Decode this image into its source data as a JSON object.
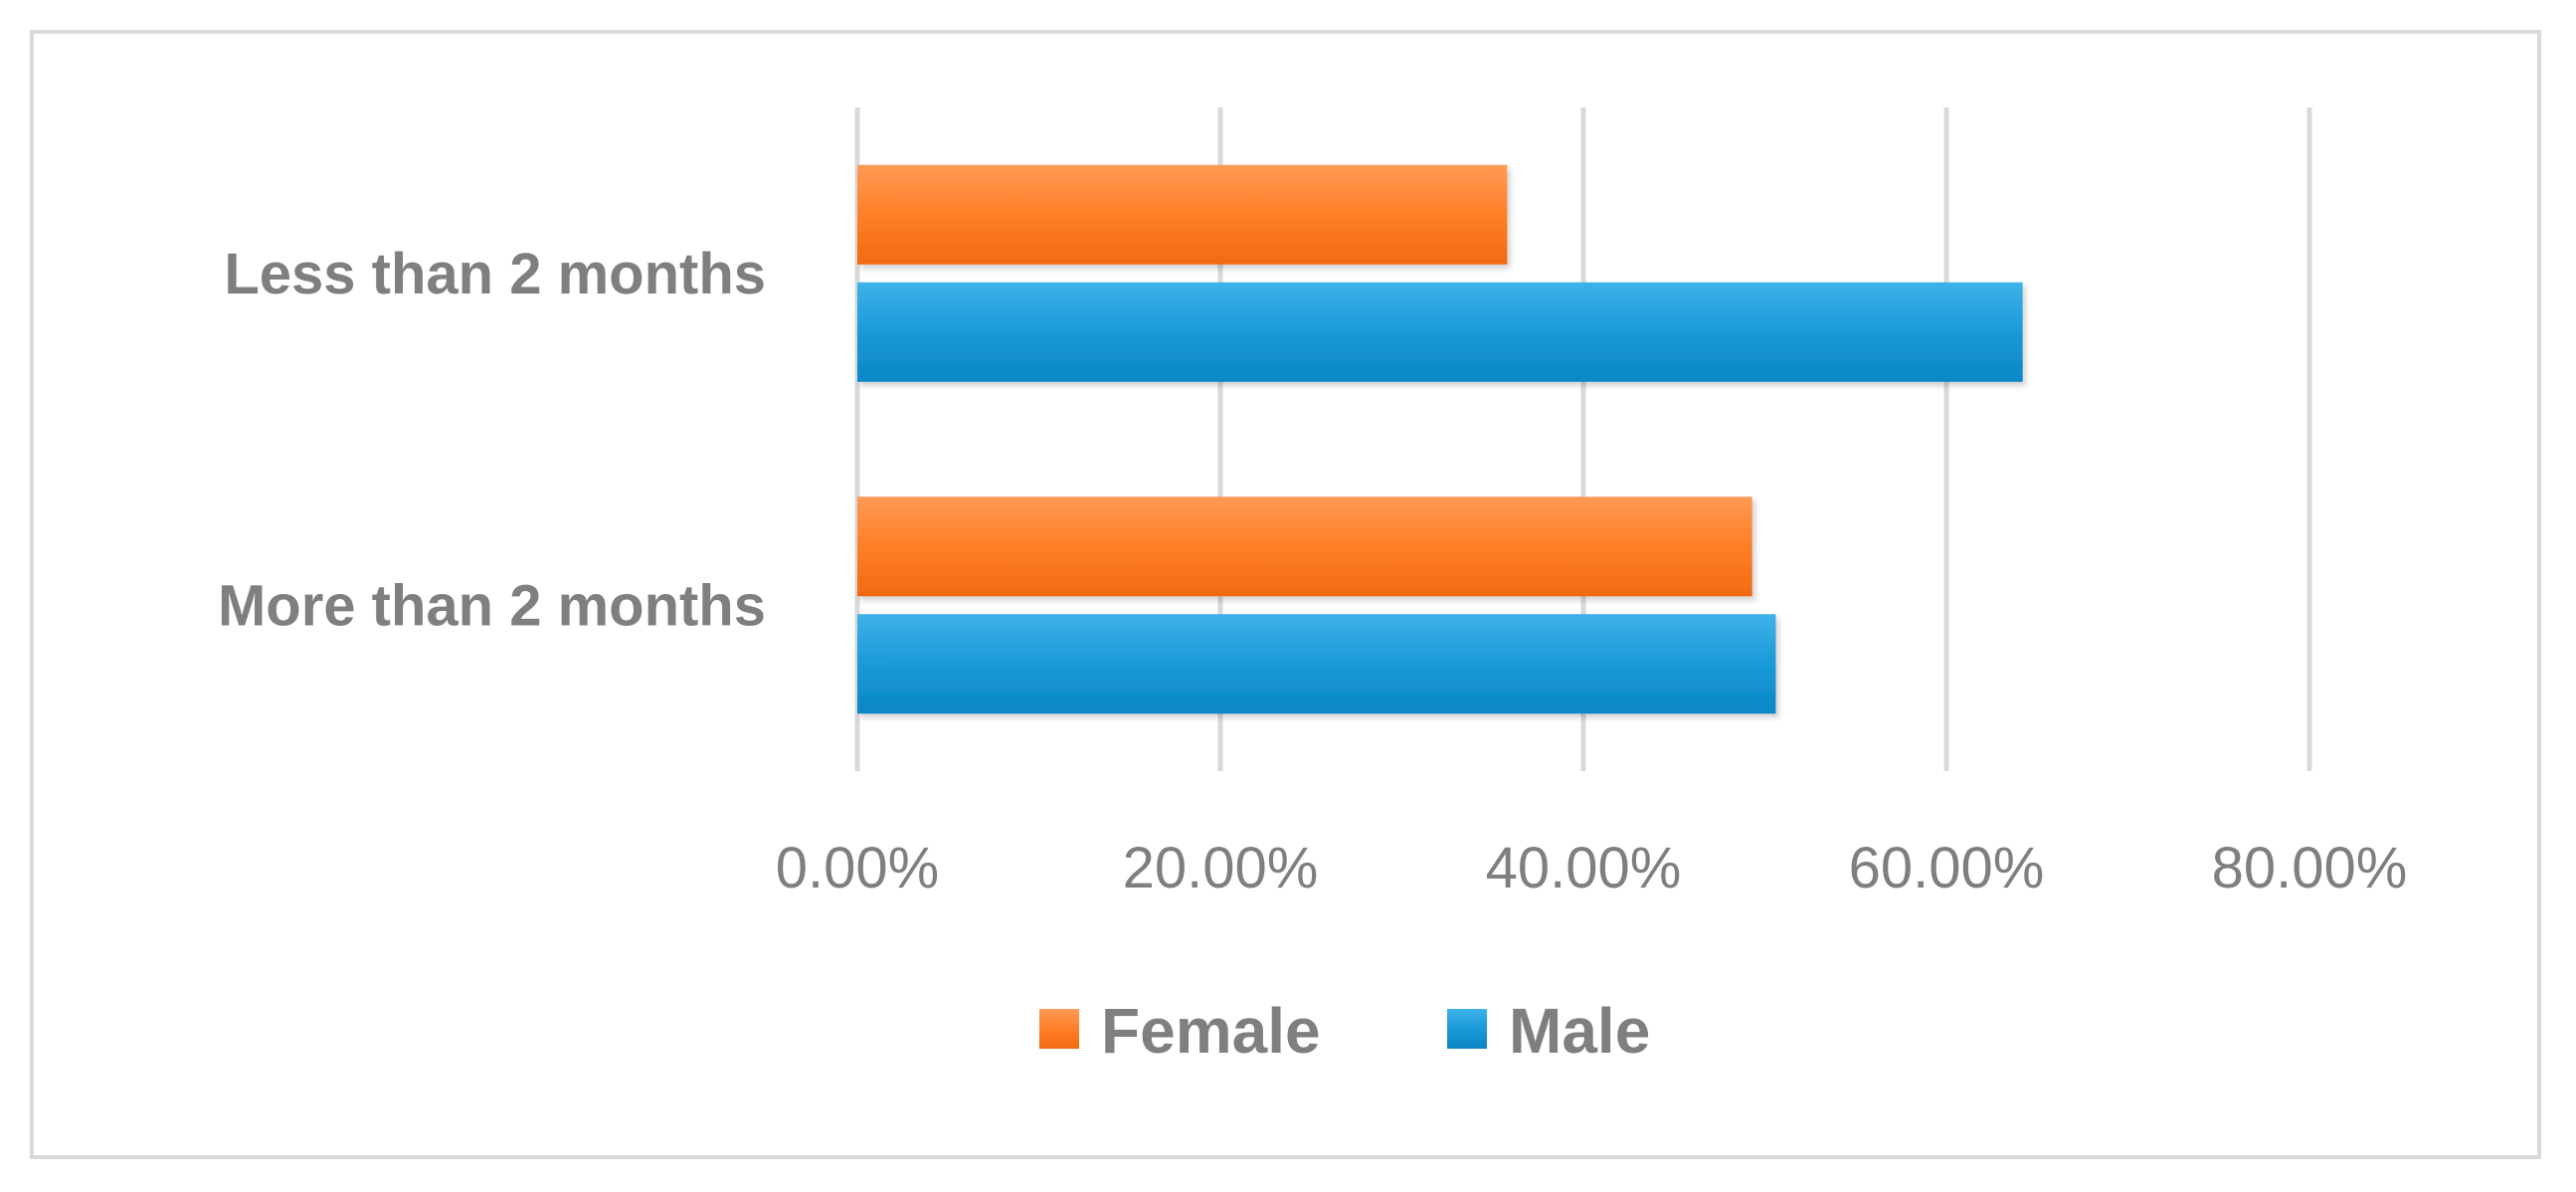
{
  "chart_data": {
    "type": "bar",
    "orientation": "horizontal",
    "categories": [
      "Less than 2 months",
      "More than 2 months"
    ],
    "series": [
      {
        "name": "Female",
        "color": "#ff7f27",
        "values": [
          0.358,
          0.493
        ]
      },
      {
        "name": "Male",
        "color": "#1a9ad9",
        "values": [
          0.642,
          0.506
        ]
      }
    ],
    "xlim": [
      0,
      0.8
    ],
    "xticks": [
      0,
      0.2,
      0.4,
      0.6,
      0.8
    ],
    "xtick_labels": [
      "0.00%",
      "20.00%",
      "40.00%",
      "60.00%",
      "80.00%"
    ],
    "grid": "vertical",
    "legend": {
      "position": "bottom",
      "items": [
        "Female",
        "Male"
      ]
    }
  }
}
